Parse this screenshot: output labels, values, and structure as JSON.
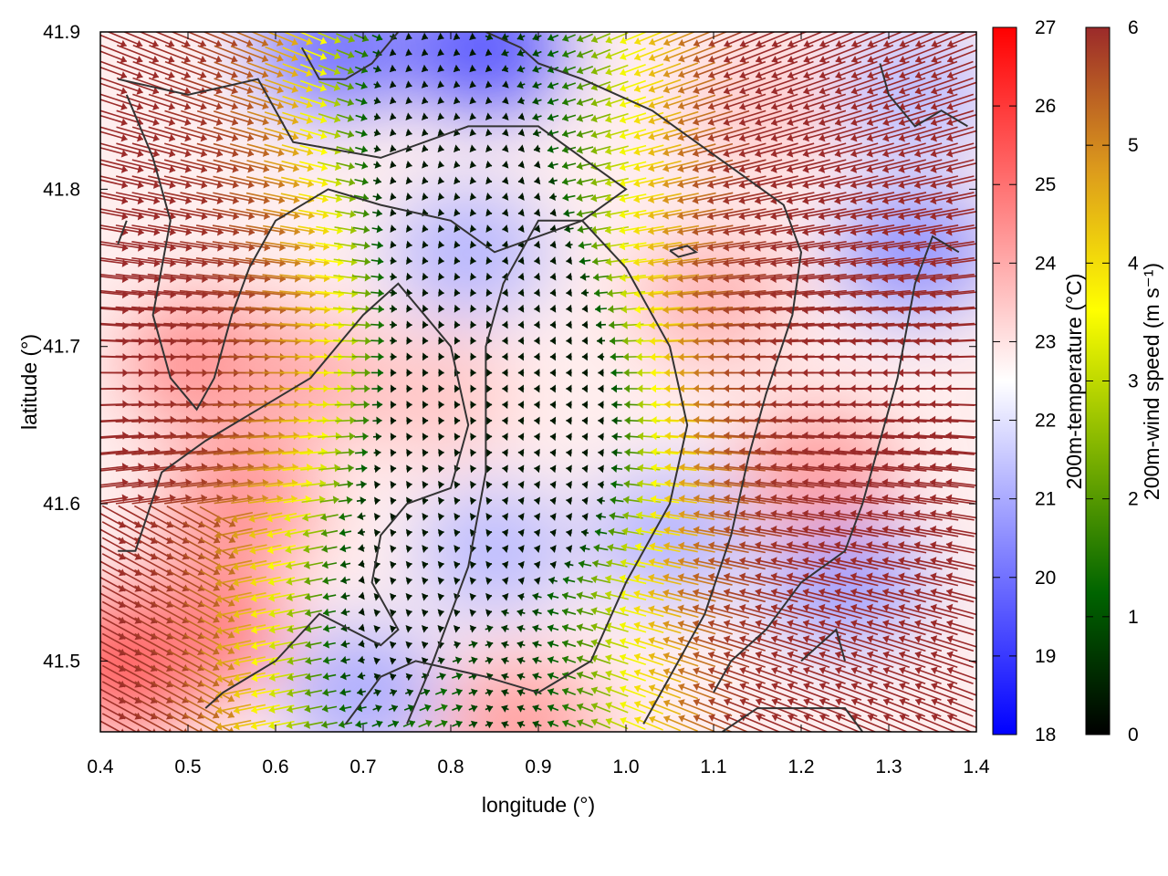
{
  "chart_data": {
    "type": "heatmap",
    "title": "",
    "xlabel": "longitude (°)",
    "ylabel": "latitude (°)",
    "xlim": [
      0.4,
      1.4
    ],
    "ylim": [
      41.455,
      41.9
    ],
    "x_ticks": [
      {
        "value": 0.4,
        "label": "0.4"
      },
      {
        "value": 0.5,
        "label": "0.5"
      },
      {
        "value": 0.6,
        "label": "0.6"
      },
      {
        "value": 0.7,
        "label": "0.7"
      },
      {
        "value": 0.8,
        "label": "0.8"
      },
      {
        "value": 0.9,
        "label": "0.9"
      },
      {
        "value": 1.0,
        "label": "1.0"
      },
      {
        "value": 1.1,
        "label": "1.1"
      },
      {
        "value": 1.2,
        "label": "1.2"
      },
      {
        "value": 1.3,
        "label": "1.3"
      },
      {
        "value": 1.4,
        "label": "1.4"
      }
    ],
    "y_ticks": [
      {
        "value": 41.5,
        "label": "41.5"
      },
      {
        "value": 41.6,
        "label": "41.6"
      },
      {
        "value": 41.7,
        "label": "41.7"
      },
      {
        "value": 41.8,
        "label": "41.8"
      },
      {
        "value": 41.9,
        "label": "41.9"
      }
    ],
    "temperature_colorbar": {
      "label": "200m-temperature (°C)",
      "range": [
        18,
        27
      ],
      "ticks": [
        {
          "value": 18,
          "label": "18"
        },
        {
          "value": 19,
          "label": "19"
        },
        {
          "value": 20,
          "label": "20"
        },
        {
          "value": 21,
          "label": "21"
        },
        {
          "value": 22,
          "label": "22"
        },
        {
          "value": 23,
          "label": "23"
        },
        {
          "value": 24,
          "label": "24"
        },
        {
          "value": 25,
          "label": "25"
        },
        {
          "value": 26,
          "label": "26"
        },
        {
          "value": 27,
          "label": "27"
        }
      ],
      "colors": [
        "#0000ff",
        "#ffffff",
        "#ff0000"
      ]
    },
    "wind_colorbar": {
      "label": "200m-wind speed (m s⁻¹)",
      "range": [
        0,
        6
      ],
      "ticks": [
        {
          "value": 0,
          "label": "0"
        },
        {
          "value": 1,
          "label": "1"
        },
        {
          "value": 2,
          "label": "2"
        },
        {
          "value": 3,
          "label": "3"
        },
        {
          "value": 4,
          "label": "4"
        },
        {
          "value": 5,
          "label": "5"
        },
        {
          "value": 6,
          "label": "6"
        }
      ],
      "colors": [
        "#000000",
        "#006400",
        "#7fb300",
        "#ffff00",
        "#dc9a1c",
        "#9b2a2a"
      ]
    },
    "temperature_hotspots": [
      {
        "lon": 0.44,
        "lat": 41.5,
        "value": 25.8
      },
      {
        "lon": 0.52,
        "lat": 41.52,
        "value": 24.8
      },
      {
        "lon": 0.56,
        "lat": 41.6,
        "value": 24.4
      },
      {
        "lon": 0.52,
        "lat": 41.69,
        "value": 24.6
      },
      {
        "lon": 0.62,
        "lat": 41.68,
        "value": 24.0
      },
      {
        "lon": 0.67,
        "lat": 41.89,
        "value": 20.0
      },
      {
        "lon": 0.84,
        "lat": 41.89,
        "value": 19.5
      },
      {
        "lon": 0.82,
        "lat": 41.76,
        "value": 21.2
      },
      {
        "lon": 0.78,
        "lat": 41.67,
        "value": 23.5
      },
      {
        "lon": 0.85,
        "lat": 41.57,
        "value": 21.3
      },
      {
        "lon": 0.7,
        "lat": 41.48,
        "value": 21.0
      },
      {
        "lon": 0.88,
        "lat": 41.46,
        "value": 24.2
      },
      {
        "lon": 1.05,
        "lat": 41.58,
        "value": 21.2
      },
      {
        "lon": 1.1,
        "lat": 41.73,
        "value": 23.8
      },
      {
        "lon": 1.25,
        "lat": 41.55,
        "value": 20.8
      },
      {
        "lon": 1.33,
        "lat": 41.76,
        "value": 20.6
      },
      {
        "lon": 1.33,
        "lat": 41.86,
        "value": 21.3
      },
      {
        "lon": 1.22,
        "lat": 41.62,
        "value": 24.2
      },
      {
        "lon": 1.15,
        "lat": 41.85,
        "value": 23.4
      }
    ],
    "temperature_background": 22.8,
    "wind_speed_centers": [
      {
        "lon": 0.86,
        "lat": 41.68,
        "speed": 0.6
      },
      {
        "lon": 0.82,
        "lat": 41.81,
        "speed": 0.9
      },
      {
        "lon": 0.76,
        "lat": 41.58,
        "speed": 2.0
      },
      {
        "lon": 0.76,
        "lat": 41.89,
        "speed": 2.0
      },
      {
        "lon": 0.7,
        "lat": 41.47,
        "speed": 2.0
      },
      {
        "lon": 0.92,
        "lat": 41.62,
        "speed": 1.8
      }
    ],
    "wind_field_description": "Weak winds (0.5–2 m s⁻¹) in a central valley near 0.86°E, 41.7°N; strong westerly/easterly flow (≥6 m s⁻¹) on western and eastern flanks converging toward the valley.",
    "topography_contours": [
      [
        [
          0.42,
          41.765
        ],
        [
          0.43,
          41.78
        ]
      ],
      [
        [
          0.42,
          41.87
        ],
        [
          0.5,
          41.86
        ],
        [
          0.58,
          41.87
        ],
        [
          0.62,
          41.83
        ],
        [
          0.72,
          41.82
        ],
        [
          0.82,
          41.84
        ],
        [
          0.9,
          41.84
        ],
        [
          0.95,
          41.82
        ],
        [
          1.0,
          41.8
        ],
        [
          0.95,
          41.78
        ],
        [
          0.9,
          41.77
        ],
        [
          0.85,
          41.76
        ],
        [
          0.8,
          41.78
        ],
        [
          0.72,
          41.79
        ],
        [
          0.66,
          41.8
        ],
        [
          0.6,
          41.78
        ],
        [
          0.57,
          41.75
        ],
        [
          0.55,
          41.72
        ],
        [
          0.53,
          41.68
        ],
        [
          0.51,
          41.66
        ],
        [
          0.48,
          41.68
        ],
        [
          0.46,
          41.72
        ],
        [
          0.48,
          41.78
        ],
        [
          0.46,
          41.82
        ],
        [
          0.43,
          41.86
        ]
      ],
      [
        [
          0.42,
          41.57
        ],
        [
          0.44,
          41.57
        ],
        [
          0.47,
          41.62
        ],
        [
          0.52,
          41.64
        ],
        [
          0.58,
          41.66
        ],
        [
          0.64,
          41.68
        ],
        [
          0.7,
          41.72
        ],
        [
          0.74,
          41.74
        ],
        [
          0.77,
          41.72
        ],
        [
          0.8,
          41.7
        ],
        [
          0.82,
          41.65
        ],
        [
          0.8,
          41.61
        ],
        [
          0.75,
          41.6
        ],
        [
          0.72,
          41.58
        ],
        [
          0.71,
          41.55
        ],
        [
          0.74,
          41.52
        ],
        [
          0.72,
          41.51
        ],
        [
          0.65,
          41.53
        ],
        [
          0.6,
          41.5
        ],
        [
          0.54,
          41.48
        ],
        [
          0.52,
          41.47
        ]
      ],
      [
        [
          0.63,
          41.89
        ],
        [
          0.65,
          41.87
        ],
        [
          0.68,
          41.87
        ],
        [
          0.71,
          41.88
        ],
        [
          0.74,
          41.9
        ]
      ],
      [
        [
          0.84,
          41.9
        ],
        [
          0.88,
          41.89
        ],
        [
          0.9,
          41.88
        ],
        [
          0.95,
          41.87
        ],
        [
          0.99,
          41.86
        ],
        [
          1.03,
          41.85
        ],
        [
          1.08,
          41.83
        ],
        [
          1.13,
          41.81
        ],
        [
          1.18,
          41.79
        ],
        [
          1.2,
          41.76
        ],
        [
          1.19,
          41.72
        ],
        [
          1.16,
          41.67
        ],
        [
          1.14,
          41.63
        ],
        [
          1.12,
          41.58
        ],
        [
          1.09,
          41.53
        ],
        [
          1.05,
          41.49
        ],
        [
          1.02,
          41.46
        ]
      ],
      [
        [
          0.68,
          41.46
        ],
        [
          0.72,
          41.49
        ],
        [
          0.76,
          41.5
        ],
        [
          0.84,
          41.49
        ],
        [
          0.9,
          41.48
        ],
        [
          0.96,
          41.5
        ],
        [
          1.0,
          41.55
        ],
        [
          1.05,
          41.6
        ],
        [
          1.07,
          41.65
        ],
        [
          1.05,
          41.7
        ],
        [
          1.0,
          41.75
        ],
        [
          0.95,
          41.78
        ],
        [
          0.9,
          41.78
        ],
        [
          0.86,
          41.74
        ],
        [
          0.84,
          41.7
        ],
        [
          0.84,
          41.62
        ],
        [
          0.82,
          41.56
        ],
        [
          0.78,
          41.5
        ],
        [
          0.75,
          41.46
        ]
      ],
      [
        [
          1.05,
          41.761
        ],
        [
          1.07,
          41.764
        ],
        [
          1.08,
          41.76
        ],
        [
          1.06,
          41.757
        ],
        [
          1.05,
          41.761
        ]
      ],
      [
        [
          1.11,
          41.455
        ],
        [
          1.15,
          41.47
        ],
        [
          1.2,
          41.47
        ],
        [
          1.25,
          41.47
        ],
        [
          1.27,
          41.455
        ]
      ],
      [
        [
          1.2,
          41.5
        ],
        [
          1.24,
          41.52
        ],
        [
          1.25,
          41.5
        ]
      ],
      [
        [
          1.29,
          41.88
        ],
        [
          1.3,
          41.86
        ],
        [
          1.33,
          41.84
        ],
        [
          1.36,
          41.85
        ],
        [
          1.39,
          41.84
        ]
      ],
      [
        [
          1.38,
          41.76
        ],
        [
          1.35,
          41.77
        ],
        [
          1.33,
          41.74
        ],
        [
          1.31,
          41.68
        ],
        [
          1.29,
          41.64
        ],
        [
          1.27,
          41.6
        ],
        [
          1.25,
          41.57
        ],
        [
          1.2,
          41.55
        ],
        [
          1.16,
          41.52
        ],
        [
          1.12,
          41.5
        ],
        [
          1.1,
          41.48
        ]
      ]
    ]
  }
}
